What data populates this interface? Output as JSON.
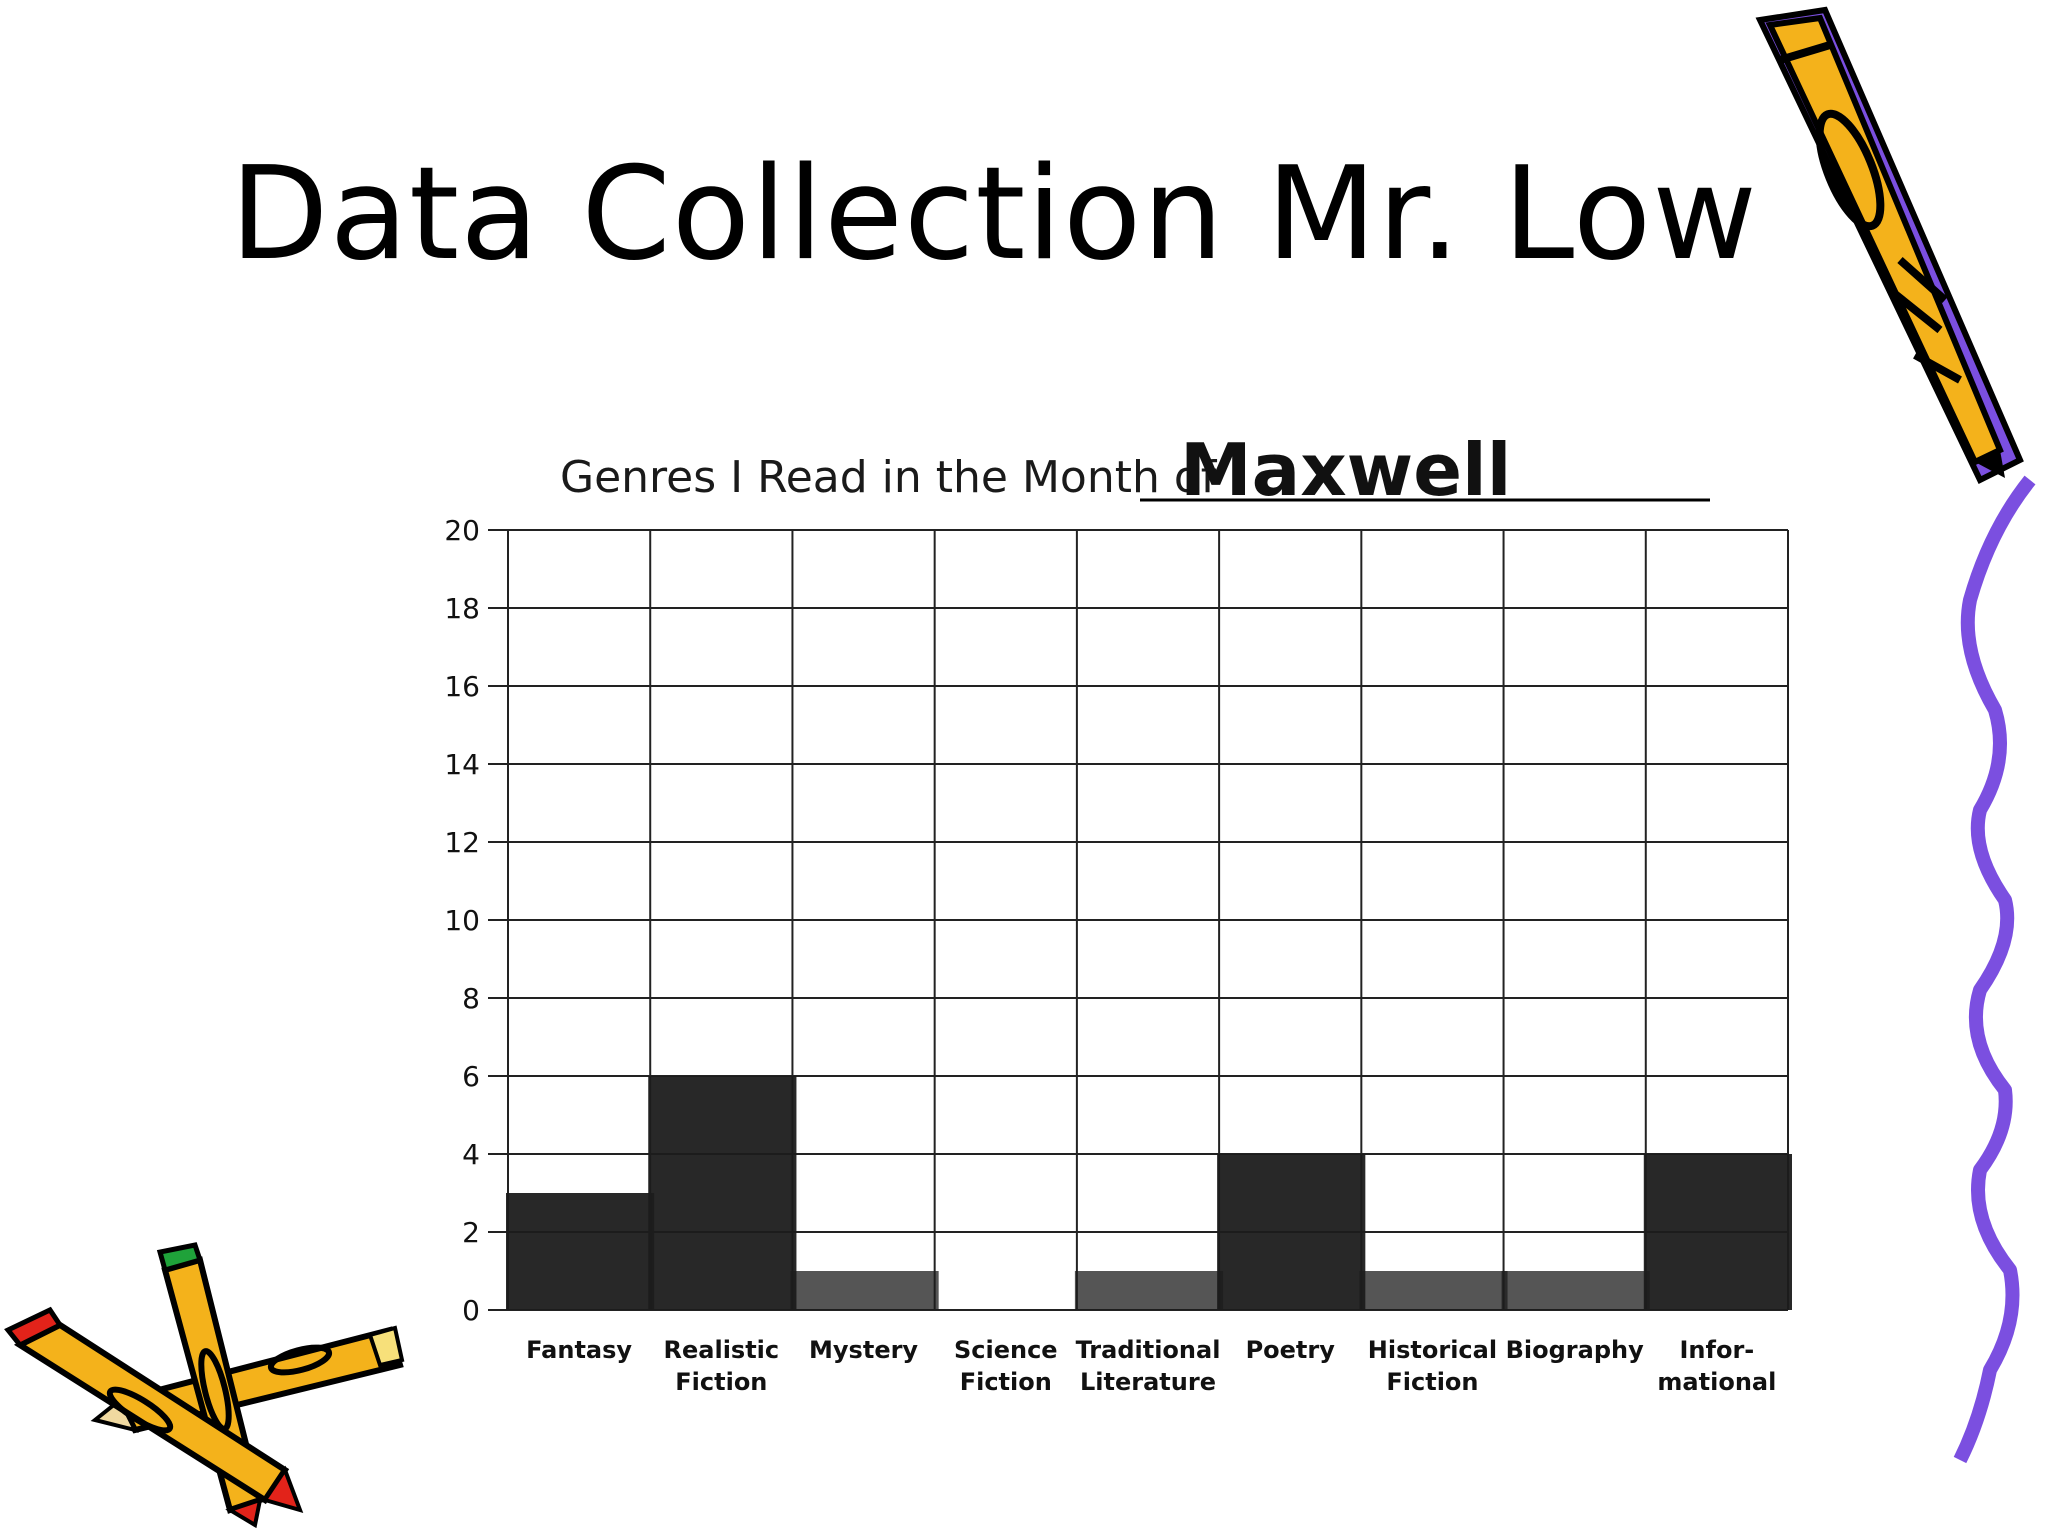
{
  "slide": {
    "title": "Data Collection Mr. Low"
  },
  "chart_data": {
    "type": "bar",
    "title": "Genres I Read in the Month of",
    "title_fill_in": "Maxwell",
    "categories": [
      [
        "Fantasy"
      ],
      [
        "Realistic",
        "Fiction"
      ],
      [
        "Mystery"
      ],
      [
        "Science",
        "Fiction"
      ],
      [
        "Traditional",
        "Literature"
      ],
      [
        "Poetry"
      ],
      [
        "Historical",
        "Fiction"
      ],
      [
        "Biography"
      ],
      [
        "Infor-",
        "mational"
      ]
    ],
    "values": [
      3,
      6,
      1,
      0,
      1,
      4,
      1,
      1,
      4
    ],
    "yticks": [
      "0",
      "2",
      "4",
      "6",
      "8",
      "10",
      "12",
      "14",
      "16",
      "18",
      "20"
    ],
    "ylim": [
      0,
      20
    ],
    "xlabel": "",
    "ylabel": "",
    "grid": true,
    "bar_color": "#1c1c1c"
  },
  "decorations": {
    "pencil_icon_top_right": "pencil-icon",
    "pencils_icon_bottom_left": "crossed-pencils-icon",
    "squiggle": "purple-squiggle-border",
    "colors": {
      "pencil_body": "#f4b21b",
      "pencil_edge": "#7b4fe0",
      "squiggle": "#7b4fe0",
      "eraser_green": "#1fa23a",
      "eraser_red": "#e2231a"
    }
  }
}
